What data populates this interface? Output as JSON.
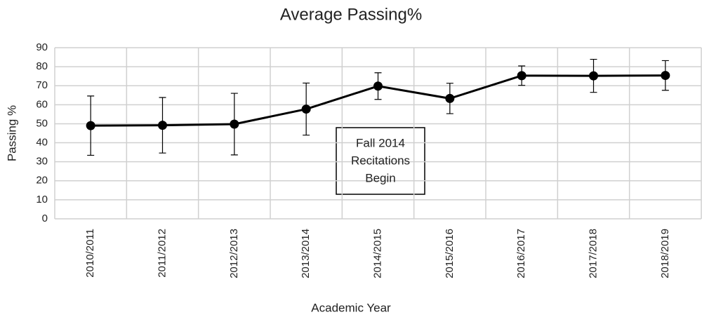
{
  "chart_data": {
    "type": "line",
    "title": "Average Passing%",
    "x_label": "Academic Year",
    "y_label": "Passing %",
    "categories": [
      "2010/2011",
      "2011/2012",
      "2012/2013",
      "2013/2014",
      "2014/2015",
      "2015/2016",
      "2016/2017",
      "2017/2018",
      "2018/2019"
    ],
    "series": [
      {
        "color": "#000000",
        "values": [
          49,
          49.2,
          49.8,
          57.7,
          69.8,
          63.3,
          75.3,
          75.2,
          75.4
        ],
        "errors": [
          15.6,
          14.6,
          16.2,
          13.7,
          7,
          8,
          5.1,
          8.7,
          7.8
        ]
      }
    ],
    "ylim": [
      0,
      90
    ],
    "yticks": [
      0,
      10,
      20,
      30,
      40,
      50,
      60,
      70,
      80,
      90
    ],
    "grid": true,
    "annotation": [
      "Fall 2014",
      "Recitations",
      "Begin"
    ]
  }
}
